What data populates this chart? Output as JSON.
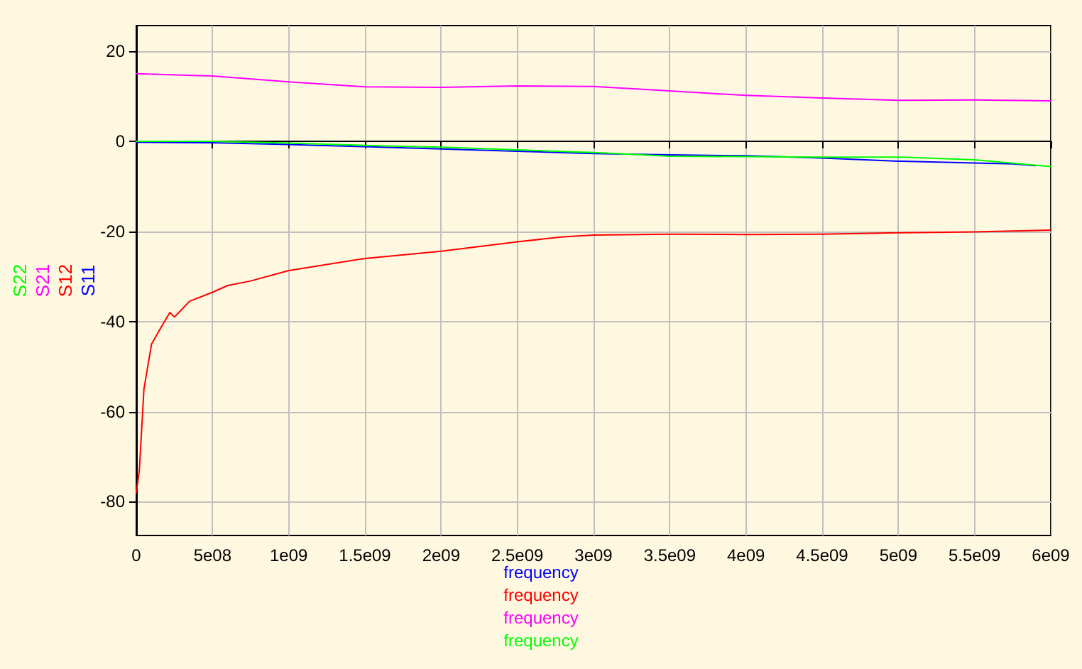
{
  "chart_data": {
    "type": "line",
    "xlabel": "frequency",
    "legend": "left",
    "grid": true,
    "marker": "none",
    "line_style": "solid",
    "xlim": [
      0,
      6000000000
    ],
    "ylim": [
      -87.5,
      25.7
    ],
    "xticks": [
      0,
      {
        "value": 500000000,
        "label": "5e08"
      },
      {
        "value": 1000000000,
        "label": "1e09"
      },
      {
        "value": 1500000000,
        "label": "1.5e09"
      },
      {
        "value": 2000000000,
        "label": "2e09"
      },
      {
        "value": 2500000000,
        "label": "2.5e09"
      },
      {
        "value": 3000000000,
        "label": "3e09"
      },
      {
        "value": 3500000000,
        "label": "3.5e09"
      },
      {
        "value": 4000000000,
        "label": "4e09"
      },
      {
        "value": 4500000000,
        "label": "4.5e09"
      },
      {
        "value": 5000000000,
        "label": "5e09"
      },
      {
        "value": 5500000000,
        "label": "5.5e09"
      },
      {
        "value": 6000000000,
        "label": "6e09"
      }
    ],
    "yticks": [
      20,
      0,
      -20,
      -40,
      -60,
      -80
    ],
    "series": [
      {
        "name": "S11",
        "color": "#0000ff",
        "x": [
          0,
          500000000,
          1000000000,
          1500000000,
          2000000000,
          2500000000,
          3000000000,
          3500000000,
          4000000000,
          4500000000,
          5000000000,
          5500000000,
          5750000000,
          5900000000
        ],
        "values": [
          -0.2,
          -0.3,
          -0.7,
          -1.2,
          -1.7,
          -2.2,
          -2.7,
          -3.0,
          -3.2,
          -3.7,
          -4.4,
          -4.8,
          -5.0,
          -5.4
        ]
      },
      {
        "name": "S12",
        "color": "#ff0000",
        "x": [
          0,
          20000000,
          50000000,
          100000000,
          150000000,
          220000000,
          250000000,
          350000000,
          500000000,
          600000000,
          750000000,
          1000000000,
          1500000000,
          2000000000,
          2500000000,
          2800000000,
          3000000000,
          3500000000,
          4000000000,
          4500000000,
          5000000000,
          5500000000,
          6000000000
        ],
        "values": [
          -78,
          -73,
          -55,
          -45,
          -42,
          -38,
          -39,
          -35.5,
          -33.5,
          -32,
          -31,
          -28.7,
          -26,
          -24.4,
          -22.3,
          -21.2,
          -20.8,
          -20.6,
          -20.7,
          -20.6,
          -20.3,
          -20.1,
          -19.7
        ]
      },
      {
        "name": "S21",
        "color": "#ff00ff",
        "x": [
          0,
          500000000,
          1000000000,
          1500000000,
          2000000000,
          2500000000,
          3000000000,
          3500000000,
          4000000000,
          4500000000,
          5000000000,
          5500000000,
          6000000000
        ],
        "values": [
          15,
          14.5,
          13.2,
          12.1,
          12,
          12.3,
          12.2,
          11.2,
          10.2,
          9.6,
          9.1,
          9.2,
          9.0
        ]
      },
      {
        "name": "S22",
        "color": "#00ff00",
        "x": [
          0,
          500000000,
          1000000000,
          1500000000,
          2000000000,
          2500000000,
          3000000000,
          3500000000,
          4000000000,
          4500000000,
          5000000000,
          5500000000,
          6000000000
        ],
        "values": [
          0,
          0,
          -0.4,
          -0.9,
          -1.3,
          -1.9,
          -2.5,
          -3.3,
          -3.4,
          -3.5,
          -3.5,
          -4.1,
          -5.6
        ]
      }
    ]
  }
}
